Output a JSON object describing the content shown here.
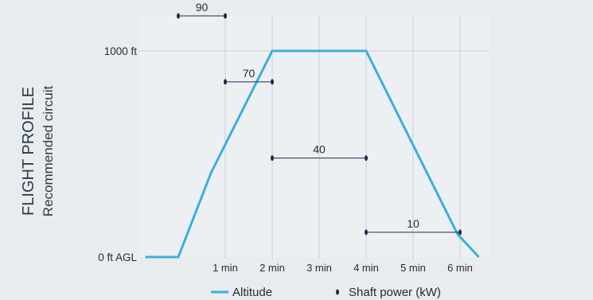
{
  "chart_data": {
    "type": "line",
    "title": "",
    "side_title": "FLIGHT PROFILE",
    "side_subtitle": "Recommended circuit",
    "xlabel": "",
    "ylabel": "",
    "xlim": [
      -0.75,
      6.55
    ],
    "ylim": [
      0,
      1000
    ],
    "x_ticks": [
      {
        "value": 1,
        "label": "1 min"
      },
      {
        "value": 2,
        "label": "2 min"
      },
      {
        "value": 3,
        "label": "3 min"
      },
      {
        "value": 4,
        "label": "4 min"
      },
      {
        "value": 5,
        "label": "5 min"
      },
      {
        "value": 6,
        "label": "6 min"
      }
    ],
    "y_ticks": [
      {
        "value": 0,
        "label": "0 ft AGL"
      },
      {
        "value": 1000,
        "label": "1000 ft"
      }
    ],
    "grid": "vertical",
    "altitude": {
      "name": "Altitude",
      "color": "#3aaee0",
      "points": [
        {
          "x": -0.7,
          "y": 0
        },
        {
          "x": 0.0,
          "y": 0
        },
        {
          "x": 0.7,
          "y": 410
        },
        {
          "x": 2.0,
          "y": 1000
        },
        {
          "x": 4.0,
          "y": 1000
        },
        {
          "x": 5.95,
          "y": 110
        },
        {
          "x": 6.4,
          "y": 0
        }
      ]
    },
    "shaft_power": {
      "name": "Shaft power (kW)",
      "color": "#1e2a4a",
      "segments": [
        {
          "x_start": 0.0,
          "x_end": 1.0,
          "y": 1170,
          "value": "90"
        },
        {
          "x_start": 1.0,
          "x_end": 2.0,
          "y": 850,
          "value": "70"
        },
        {
          "x_start": 2.0,
          "x_end": 4.0,
          "y": 480,
          "value": "40"
        },
        {
          "x_start": 4.0,
          "x_end": 6.0,
          "y": 120,
          "value": "10"
        }
      ]
    },
    "legend_position": "bottom"
  }
}
